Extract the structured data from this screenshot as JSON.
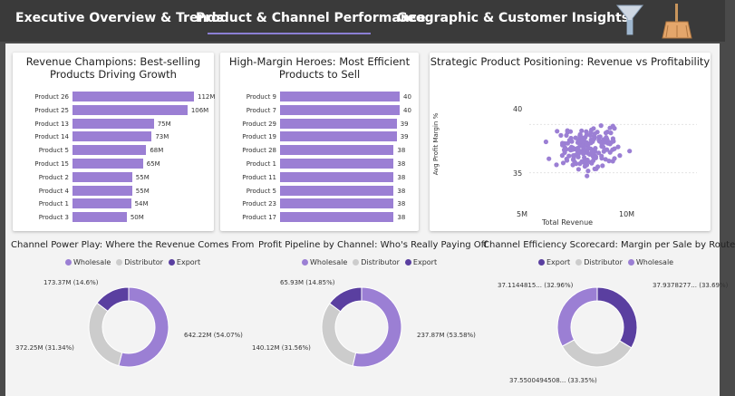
{
  "tabs": [
    {
      "label": "Executive Overview & Trends"
    },
    {
      "label": "Product & Channel Performance"
    },
    {
      "label": "Geographic & Customer Insights"
    }
  ],
  "icons": {
    "filter": "funnel-icon",
    "broom": "broom-icon"
  },
  "colors": {
    "bar": "#9b7fd4",
    "wholesale": "#9b7fd4",
    "distributor": "#cccccc",
    "export": "#5a3fa0",
    "accent": "#8b7fd4"
  },
  "revenue_chart": {
    "title": "Revenue Champions: Best-selling Products Driving Growth",
    "chart_data": {
      "type": "bar",
      "orientation": "horizontal",
      "categories": [
        "Product 26",
        "Product 25",
        "Product 13",
        "Product 14",
        "Product 5",
        "Product 15",
        "Product 2",
        "Product 4",
        "Product 1",
        "Product 3"
      ],
      "values": [
        112,
        106,
        75,
        73,
        68,
        65,
        55,
        55,
        54,
        50
      ],
      "labels": [
        "112M",
        "106M",
        "75M",
        "73M",
        "68M",
        "65M",
        "55M",
        "55M",
        "54M",
        "50M"
      ],
      "unit": "M"
    }
  },
  "margin_chart": {
    "title": "High-Margin Heroes: Most Efficient Products to Sell",
    "chart_data": {
      "type": "bar",
      "orientation": "horizontal",
      "categories": [
        "Product 9",
        "Product 7",
        "Product 29",
        "Product 19",
        "Product 28",
        "Product 1",
        "Product 11",
        "Product 5",
        "Product 23",
        "Product 17"
      ],
      "values": [
        40,
        40,
        39,
        39,
        38,
        38,
        38,
        38,
        38,
        38
      ],
      "labels": [
        "40",
        "40",
        "39",
        "39",
        "38",
        "38",
        "38",
        "38",
        "38",
        "38"
      ]
    }
  },
  "scatter_chart": {
    "title": "Strategic Product Positioning: Revenue vs Profitability",
    "chart_data": {
      "type": "scatter",
      "xlabel": "Total Revenue",
      "ylabel": "Avg Profit Margin %",
      "x_ticks": [
        "5M",
        "10M"
      ],
      "y_ticks": [
        "40",
        "35"
      ],
      "xlim": [
        2.5,
        12.5
      ],
      "ylim": [
        31.5,
        43.5
      ]
    }
  },
  "donut_revenue": {
    "title": "Channel Power Play: Where the Revenue Comes From",
    "legend": [
      "Wholesale",
      "Distributor",
      "Export"
    ],
    "chart_data": {
      "type": "pie",
      "series": [
        {
          "name": "Wholesale",
          "value": 642.22,
          "label": "642.22M (54.07%)"
        },
        {
          "name": "Distributor",
          "value": 372.25,
          "label": "372.25M (31.34%)"
        },
        {
          "name": "Export",
          "value": 173.37,
          "label": "173.37M (14.6%)"
        }
      ]
    }
  },
  "donut_profit": {
    "title": "Profit Pipeline by Channel: Who's Really Paying Off",
    "legend": [
      "Wholesale",
      "Distributor",
      "Export"
    ],
    "chart_data": {
      "type": "pie",
      "series": [
        {
          "name": "Wholesale",
          "value": 237.87,
          "label": "237.87M (53.58%)"
        },
        {
          "name": "Distributor",
          "value": 140.12,
          "label": "140.12M (31.56%)"
        },
        {
          "name": "Export",
          "value": 65.93,
          "label": "65.93M (14.85%)"
        }
      ]
    }
  },
  "donut_efficiency": {
    "title": "Channel Efficiency Scorecard: Margin per Sale by Route",
    "legend": [
      "Export",
      "Distributor",
      "Wholesale"
    ],
    "chart_data": {
      "type": "pie",
      "series": [
        {
          "name": "Export",
          "value": 33.69,
          "label": "37.9378277... (33.69%)"
        },
        {
          "name": "Distributor",
          "value": 33.35,
          "label": "37.5500494508... (33.35%)"
        },
        {
          "name": "Wholesale",
          "value": 32.96,
          "label": "37.1144815... (32.96%)"
        }
      ]
    }
  }
}
